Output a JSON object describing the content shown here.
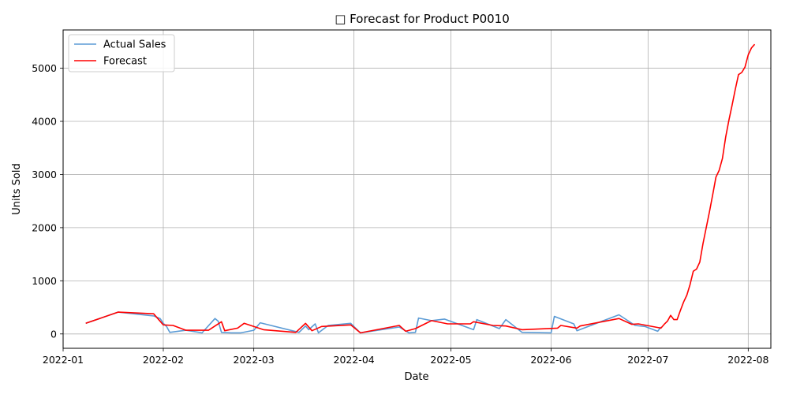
{
  "chart_data": {
    "type": "line",
    "title": "□ Forecast for Product P0010",
    "xlabel": "Date",
    "ylabel": "Units Sold",
    "xlim": [
      "2022-01-01",
      "2022-08-08"
    ],
    "ylim": [
      -270,
      5720
    ],
    "grid": true,
    "legend": "top-left",
    "x_ticks": [
      "2022-01",
      "2022-02",
      "2022-03",
      "2022-04",
      "2022-05",
      "2022-06",
      "2022-07",
      "2022-08"
    ],
    "y_ticks": [
      0,
      1000,
      2000,
      3000,
      4000,
      5000
    ],
    "series": [
      {
        "name": "Actual Sales",
        "color": "#5b9bd5",
        "points": [
          [
            "2022-01-08",
            200
          ],
          [
            "2022-01-18",
            410
          ],
          [
            "2022-01-29",
            340
          ],
          [
            "2022-01-31",
            290
          ],
          [
            "2022-02-01",
            200
          ],
          [
            "2022-02-02",
            140
          ],
          [
            "2022-02-03",
            30
          ],
          [
            "2022-02-08",
            70
          ],
          [
            "2022-02-13",
            20
          ],
          [
            "2022-02-17",
            290
          ],
          [
            "2022-02-18",
            240
          ],
          [
            "2022-02-19",
            30
          ],
          [
            "2022-02-22",
            20
          ],
          [
            "2022-02-25",
            20
          ],
          [
            "2022-03-01",
            70
          ],
          [
            "2022-03-03",
            210
          ],
          [
            "2022-03-15",
            30
          ],
          [
            "2022-03-17",
            150
          ],
          [
            "2022-03-18",
            80
          ],
          [
            "2022-03-20",
            190
          ],
          [
            "2022-03-21",
            20
          ],
          [
            "2022-03-24",
            160
          ],
          [
            "2022-03-31",
            200
          ],
          [
            "2022-04-03",
            20
          ],
          [
            "2022-04-15",
            130
          ],
          [
            "2022-04-18",
            20
          ],
          [
            "2022-04-20",
            30
          ],
          [
            "2022-04-21",
            300
          ],
          [
            "2022-04-25",
            250
          ],
          [
            "2022-04-29",
            280
          ],
          [
            "2022-05-08",
            80
          ],
          [
            "2022-05-09",
            270
          ],
          [
            "2022-05-16",
            100
          ],
          [
            "2022-05-18",
            270
          ],
          [
            "2022-05-23",
            30
          ],
          [
            "2022-06-01",
            20
          ],
          [
            "2022-06-02",
            330
          ],
          [
            "2022-06-08",
            190
          ],
          [
            "2022-06-09",
            60
          ],
          [
            "2022-06-22",
            360
          ],
          [
            "2022-06-27",
            160
          ],
          [
            "2022-06-30",
            140
          ],
          [
            "2022-07-04",
            50
          ],
          [
            "2022-07-05",
            130
          ]
        ]
      },
      {
        "name": "Forecast",
        "color": "#ff0000",
        "points": [
          [
            "2022-01-08",
            200
          ],
          [
            "2022-01-18",
            410
          ],
          [
            "2022-01-29",
            380
          ],
          [
            "2022-02-01",
            170
          ],
          [
            "2022-02-04",
            160
          ],
          [
            "2022-02-08",
            70
          ],
          [
            "2022-02-15",
            70
          ],
          [
            "2022-02-19",
            230
          ],
          [
            "2022-02-20",
            60
          ],
          [
            "2022-02-24",
            110
          ],
          [
            "2022-02-26",
            200
          ],
          [
            "2022-03-04",
            80
          ],
          [
            "2022-03-14",
            30
          ],
          [
            "2022-03-17",
            200
          ],
          [
            "2022-03-19",
            60
          ],
          [
            "2022-03-22",
            140
          ],
          [
            "2022-03-31",
            170
          ],
          [
            "2022-04-03",
            20
          ],
          [
            "2022-04-15",
            160
          ],
          [
            "2022-04-17",
            50
          ],
          [
            "2022-04-20",
            100
          ],
          [
            "2022-04-25",
            250
          ],
          [
            "2022-04-30",
            190
          ],
          [
            "2022-05-07",
            190
          ],
          [
            "2022-05-08",
            230
          ],
          [
            "2022-05-14",
            160
          ],
          [
            "2022-05-18",
            150
          ],
          [
            "2022-05-23",
            80
          ],
          [
            "2022-06-03",
            110
          ],
          [
            "2022-06-04",
            160
          ],
          [
            "2022-06-09",
            110
          ],
          [
            "2022-06-10",
            150
          ],
          [
            "2022-06-22",
            290
          ],
          [
            "2022-06-26",
            180
          ],
          [
            "2022-06-28",
            190
          ],
          [
            "2022-07-05",
            110
          ],
          [
            "2022-07-06",
            180
          ],
          [
            "2022-07-07",
            240
          ],
          [
            "2022-07-08",
            350
          ],
          [
            "2022-07-09",
            270
          ],
          [
            "2022-07-10",
            270
          ],
          [
            "2022-07-11",
            440
          ],
          [
            "2022-07-12",
            600
          ],
          [
            "2022-07-13",
            730
          ],
          [
            "2022-07-14",
            930
          ],
          [
            "2022-07-15",
            1180
          ],
          [
            "2022-07-16",
            1220
          ],
          [
            "2022-07-17",
            1350
          ],
          [
            "2022-07-18",
            1700
          ],
          [
            "2022-07-19",
            2000
          ],
          [
            "2022-07-20",
            2300
          ],
          [
            "2022-07-21",
            2620
          ],
          [
            "2022-07-22",
            2950
          ],
          [
            "2022-07-23",
            3080
          ],
          [
            "2022-07-24",
            3300
          ],
          [
            "2022-07-25",
            3700
          ],
          [
            "2022-07-26",
            4020
          ],
          [
            "2022-07-27",
            4300
          ],
          [
            "2022-07-28",
            4600
          ],
          [
            "2022-07-29",
            4880
          ],
          [
            "2022-07-30",
            4920
          ],
          [
            "2022-07-31",
            5020
          ],
          [
            "2022-08-01",
            5250
          ],
          [
            "2022-08-02",
            5380
          ],
          [
            "2022-08-03",
            5450
          ]
        ]
      }
    ]
  }
}
